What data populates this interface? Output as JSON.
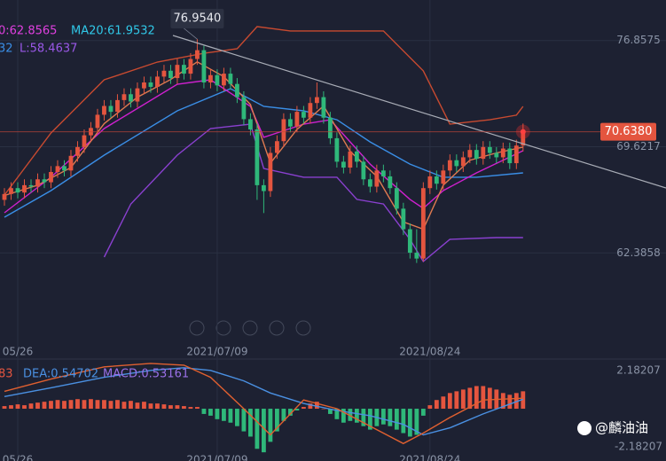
{
  "chart_data": {
    "type": "candlestick",
    "open": [
      66.0,
      66.4,
      66.8,
      66.5,
      67.0,
      66.9,
      67.4,
      67.2,
      67.9,
      68.3,
      68.0,
      69.0,
      69.6,
      70.4,
      70.9,
      71.8,
      72.4,
      72.0,
      72.8,
      73.2,
      72.7,
      73.6,
      74.0,
      73.7,
      74.4,
      74.8,
      74.3,
      75.2,
      74.6,
      75.6,
      76.2,
      74.0,
      74.5,
      73.8,
      74.6,
      73.9,
      73.0,
      71.5,
      70.8,
      67.0,
      66.6,
      69.2,
      70.0,
      71.5,
      71.0,
      72.0,
      71.6,
      72.6,
      73.0,
      71.6,
      70.2,
      68.6,
      68.2,
      69.3,
      68.6,
      67.4,
      66.9,
      68.0,
      67.6,
      66.8,
      65.4,
      64.0,
      62.4,
      62.0,
      66.8,
      67.6,
      67.1,
      68.0,
      68.7,
      68.3,
      68.9,
      69.4,
      68.8,
      69.6,
      69.2,
      68.9,
      69.5,
      68.5,
      69.7
    ],
    "high": [
      66.8,
      67.2,
      67.2,
      67.4,
      67.4,
      67.8,
      67.8,
      68.3,
      68.7,
      68.7,
      69.4,
      70.0,
      70.8,
      71.3,
      72.2,
      72.8,
      72.8,
      73.2,
      73.6,
      73.6,
      74.0,
      74.4,
      74.4,
      74.8,
      75.2,
      75.2,
      75.6,
      75.6,
      76.0,
      76.954,
      76.5,
      74.9,
      74.9,
      75.0,
      75.0,
      74.3,
      73.4,
      71.9,
      71.2,
      67.4,
      69.6,
      70.4,
      71.9,
      71.9,
      72.4,
      72.4,
      73.0,
      74.0,
      73.4,
      72.0,
      70.6,
      69.0,
      69.7,
      69.7,
      69.0,
      67.8,
      68.4,
      68.4,
      68.0,
      67.2,
      65.8,
      64.4,
      64.0,
      67.2,
      68.0,
      68.0,
      68.4,
      69.1,
      69.1,
      69.3,
      69.8,
      69.8,
      70.0,
      70.0,
      69.6,
      69.9,
      69.9,
      70.1,
      71.2
    ],
    "low": [
      65.6,
      66.0,
      66.1,
      66.1,
      66.5,
      66.5,
      66.8,
      66.8,
      67.5,
      67.6,
      67.6,
      68.6,
      69.2,
      70.0,
      70.5,
      71.4,
      71.6,
      71.6,
      72.4,
      72.3,
      72.3,
      73.2,
      73.3,
      73.3,
      74.0,
      73.9,
      73.9,
      74.2,
      74.2,
      75.2,
      73.6,
      73.6,
      73.4,
      73.4,
      73.5,
      72.6,
      71.1,
      70.4,
      66.0,
      65.1,
      66.2,
      68.8,
      69.6,
      70.6,
      70.6,
      71.2,
      71.2,
      72.2,
      71.2,
      69.8,
      68.2,
      67.8,
      67.8,
      68.2,
      67.0,
      66.5,
      66.5,
      67.2,
      66.4,
      65.0,
      63.6,
      62.0,
      61.7,
      61.8,
      66.4,
      66.7,
      66.7,
      67.6,
      67.9,
      67.9,
      68.5,
      68.4,
      68.4,
      68.8,
      68.5,
      68.5,
      68.1,
      68.1,
      69.3
    ],
    "close": [
      66.4,
      66.8,
      66.5,
      67.0,
      66.9,
      67.4,
      67.2,
      67.9,
      68.3,
      68.0,
      69.0,
      69.6,
      70.4,
      70.9,
      71.8,
      72.4,
      72.0,
      72.8,
      73.2,
      72.7,
      73.6,
      74.0,
      73.7,
      74.4,
      74.8,
      74.3,
      75.2,
      74.6,
      75.6,
      76.2,
      74.0,
      74.5,
      73.8,
      74.6,
      73.9,
      73.0,
      71.5,
      70.8,
      67.0,
      66.6,
      69.2,
      70.0,
      71.5,
      71.0,
      72.0,
      71.6,
      72.6,
      73.0,
      71.6,
      70.2,
      68.6,
      68.2,
      69.3,
      68.6,
      67.4,
      66.9,
      68.0,
      67.6,
      66.8,
      65.4,
      64.0,
      62.4,
      62.0,
      66.8,
      67.6,
      67.1,
      68.0,
      68.7,
      68.3,
      68.9,
      69.4,
      68.8,
      69.6,
      69.2,
      68.9,
      69.5,
      68.5,
      69.7,
      70.64
    ],
    "up_color": "#e4553f",
    "down_color": "#2fb87a",
    "ylim": [
      56.36,
      79.62
    ],
    "yticks": [
      62.3858,
      69.6217,
      76.8575
    ],
    "xlim": [
      -0.667,
      99.5
    ],
    "xticks": [
      {
        "value": 2,
        "label": "05/26"
      },
      {
        "value": 32,
        "label": "2021/07/09"
      },
      {
        "value": 64,
        "label": "2021/08/24"
      }
    ],
    "grid": true,
    "last_price": {
      "value": 70.638,
      "label": "70.6380"
    },
    "peak_annotation": {
      "x": 29,
      "value": 76.954,
      "label": "76.9540"
    },
    "legend": [
      {
        "text": "0:62.8565",
        "color": "#e040e0"
      },
      {
        "text": "MA20:61.9532",
        "color": "#30c8e8"
      },
      {
        "text": "32",
        "color": "#3a8ee6"
      },
      {
        "text": "L:58.4637",
        "color": "#9a58e8"
      }
    ],
    "lines": [
      {
        "color": "#c84a30",
        "x": [
          0,
          7,
          15,
          23,
          30,
          35,
          38,
          43,
          49,
          57,
          63,
          67,
          73,
          77,
          78
        ],
        "values": [
          66.33,
          70.56,
          74.18,
          75.39,
          75.99,
          76.3,
          77.81,
          77.51,
          77.51,
          77.51,
          74.79,
          71.16,
          71.46,
          71.77,
          72.37
        ]
      },
      {
        "color": "#8a40d0",
        "x": [
          15,
          19,
          26,
          31,
          37,
          39,
          45,
          50,
          53,
          57,
          61,
          63,
          67,
          74,
          78
        ],
        "values": [
          62.1,
          65.72,
          69.05,
          70.86,
          71.16,
          68.14,
          67.54,
          67.54,
          66.03,
          65.72,
          63.31,
          61.8,
          63.31,
          63.43,
          63.43
        ]
      },
      {
        "color": "#3a8ee6",
        "x": [
          0,
          7,
          15,
          26,
          34,
          39,
          45,
          50,
          55,
          61,
          66,
          71,
          78
        ],
        "values": [
          64.82,
          66.63,
          69.05,
          72.07,
          73.58,
          72.37,
          72.07,
          71.46,
          69.95,
          68.44,
          67.54,
          67.54,
          67.84
        ]
      },
      {
        "color": "#d020d0",
        "x": [
          0,
          7,
          15,
          26,
          31,
          37,
          39,
          45,
          49,
          55,
          61,
          63,
          66,
          71,
          78
        ],
        "values": [
          65.12,
          67.54,
          70.86,
          73.88,
          74.18,
          72.37,
          70.26,
          71.16,
          71.46,
          68.44,
          66.03,
          65.42,
          66.63,
          67.84,
          69.35
        ]
      },
      {
        "color": "#e07a50",
        "x": [
          0,
          5,
          10,
          15,
          20,
          25,
          29,
          33,
          37,
          40,
          44,
          48,
          52,
          56,
          60,
          63,
          66,
          70,
          74,
          78
        ],
        "values": [
          66.3,
          67.0,
          68.2,
          71.2,
          73.0,
          74.2,
          75.4,
          74.4,
          72.5,
          68.5,
          70.8,
          72.4,
          69.3,
          67.6,
          64.5,
          64.0,
          67.0,
          68.7,
          69.2,
          69.6
        ]
      }
    ],
    "macd": {
      "ylim": [
        -3.0,
        2.85
      ],
      "yticks": [
        2.18207,
        -2.18207
      ],
      "legend": [
        {
          "text": "83",
          "color": "#e4553f"
        },
        {
          "text": "DEA:0.54702",
          "color": "#4a90e2"
        },
        {
          "text": "MACD:0.53161",
          "color": "#9a70e8"
        }
      ],
      "histogram": [
        0.15,
        0.2,
        0.25,
        0.2,
        0.3,
        0.35,
        0.4,
        0.45,
        0.5,
        0.45,
        0.5,
        0.55,
        0.5,
        0.55,
        0.5,
        0.5,
        0.45,
        0.5,
        0.4,
        0.45,
        0.35,
        0.4,
        0.3,
        0.3,
        0.25,
        0.2,
        0.2,
        0.15,
        0.1,
        0.1,
        -0.3,
        -0.4,
        -0.6,
        -0.7,
        -0.8,
        -1.0,
        -1.3,
        -1.6,
        -2.3,
        -2.5,
        -1.9,
        -1.3,
        -0.7,
        -0.4,
        -0.1,
        0.1,
        0.3,
        0.4,
        0.0,
        -0.3,
        -0.6,
        -0.8,
        -0.7,
        -0.8,
        -1.0,
        -1.2,
        -1.0,
        -0.9,
        -1.0,
        -1.2,
        -1.4,
        -1.6,
        -1.5,
        -0.4,
        0.2,
        0.5,
        0.7,
        0.9,
        1.0,
        1.1,
        1.2,
        1.3,
        1.3,
        1.2,
        1.1,
        0.9,
        0.8,
        0.9,
        1.0
      ],
      "lines": [
        {
          "color": "#4a90e2",
          "x": [
            0,
            7,
            15,
            22,
            27,
            31,
            36,
            40,
            45,
            50,
            55,
            60,
            63,
            67,
            72,
            78
          ],
          "values": [
            0.7,
            1.2,
            1.8,
            2.2,
            2.35,
            2.2,
            1.6,
            0.9,
            0.3,
            -0.1,
            -0.4,
            -0.9,
            -1.5,
            -1.1,
            -0.3,
            0.547
          ]
        },
        {
          "color": "#e06030",
          "x": [
            0,
            7,
            15,
            22,
            27,
            31,
            36,
            40,
            45,
            50,
            55,
            60,
            63,
            67,
            72,
            78
          ],
          "values": [
            1.0,
            1.7,
            2.4,
            2.6,
            2.5,
            1.8,
            0.0,
            -1.5,
            0.5,
            0.0,
            -1.0,
            -2.0,
            -1.4,
            -0.5,
            0.5,
            0.6
          ]
        }
      ]
    },
    "watermark": "@麟油油"
  }
}
